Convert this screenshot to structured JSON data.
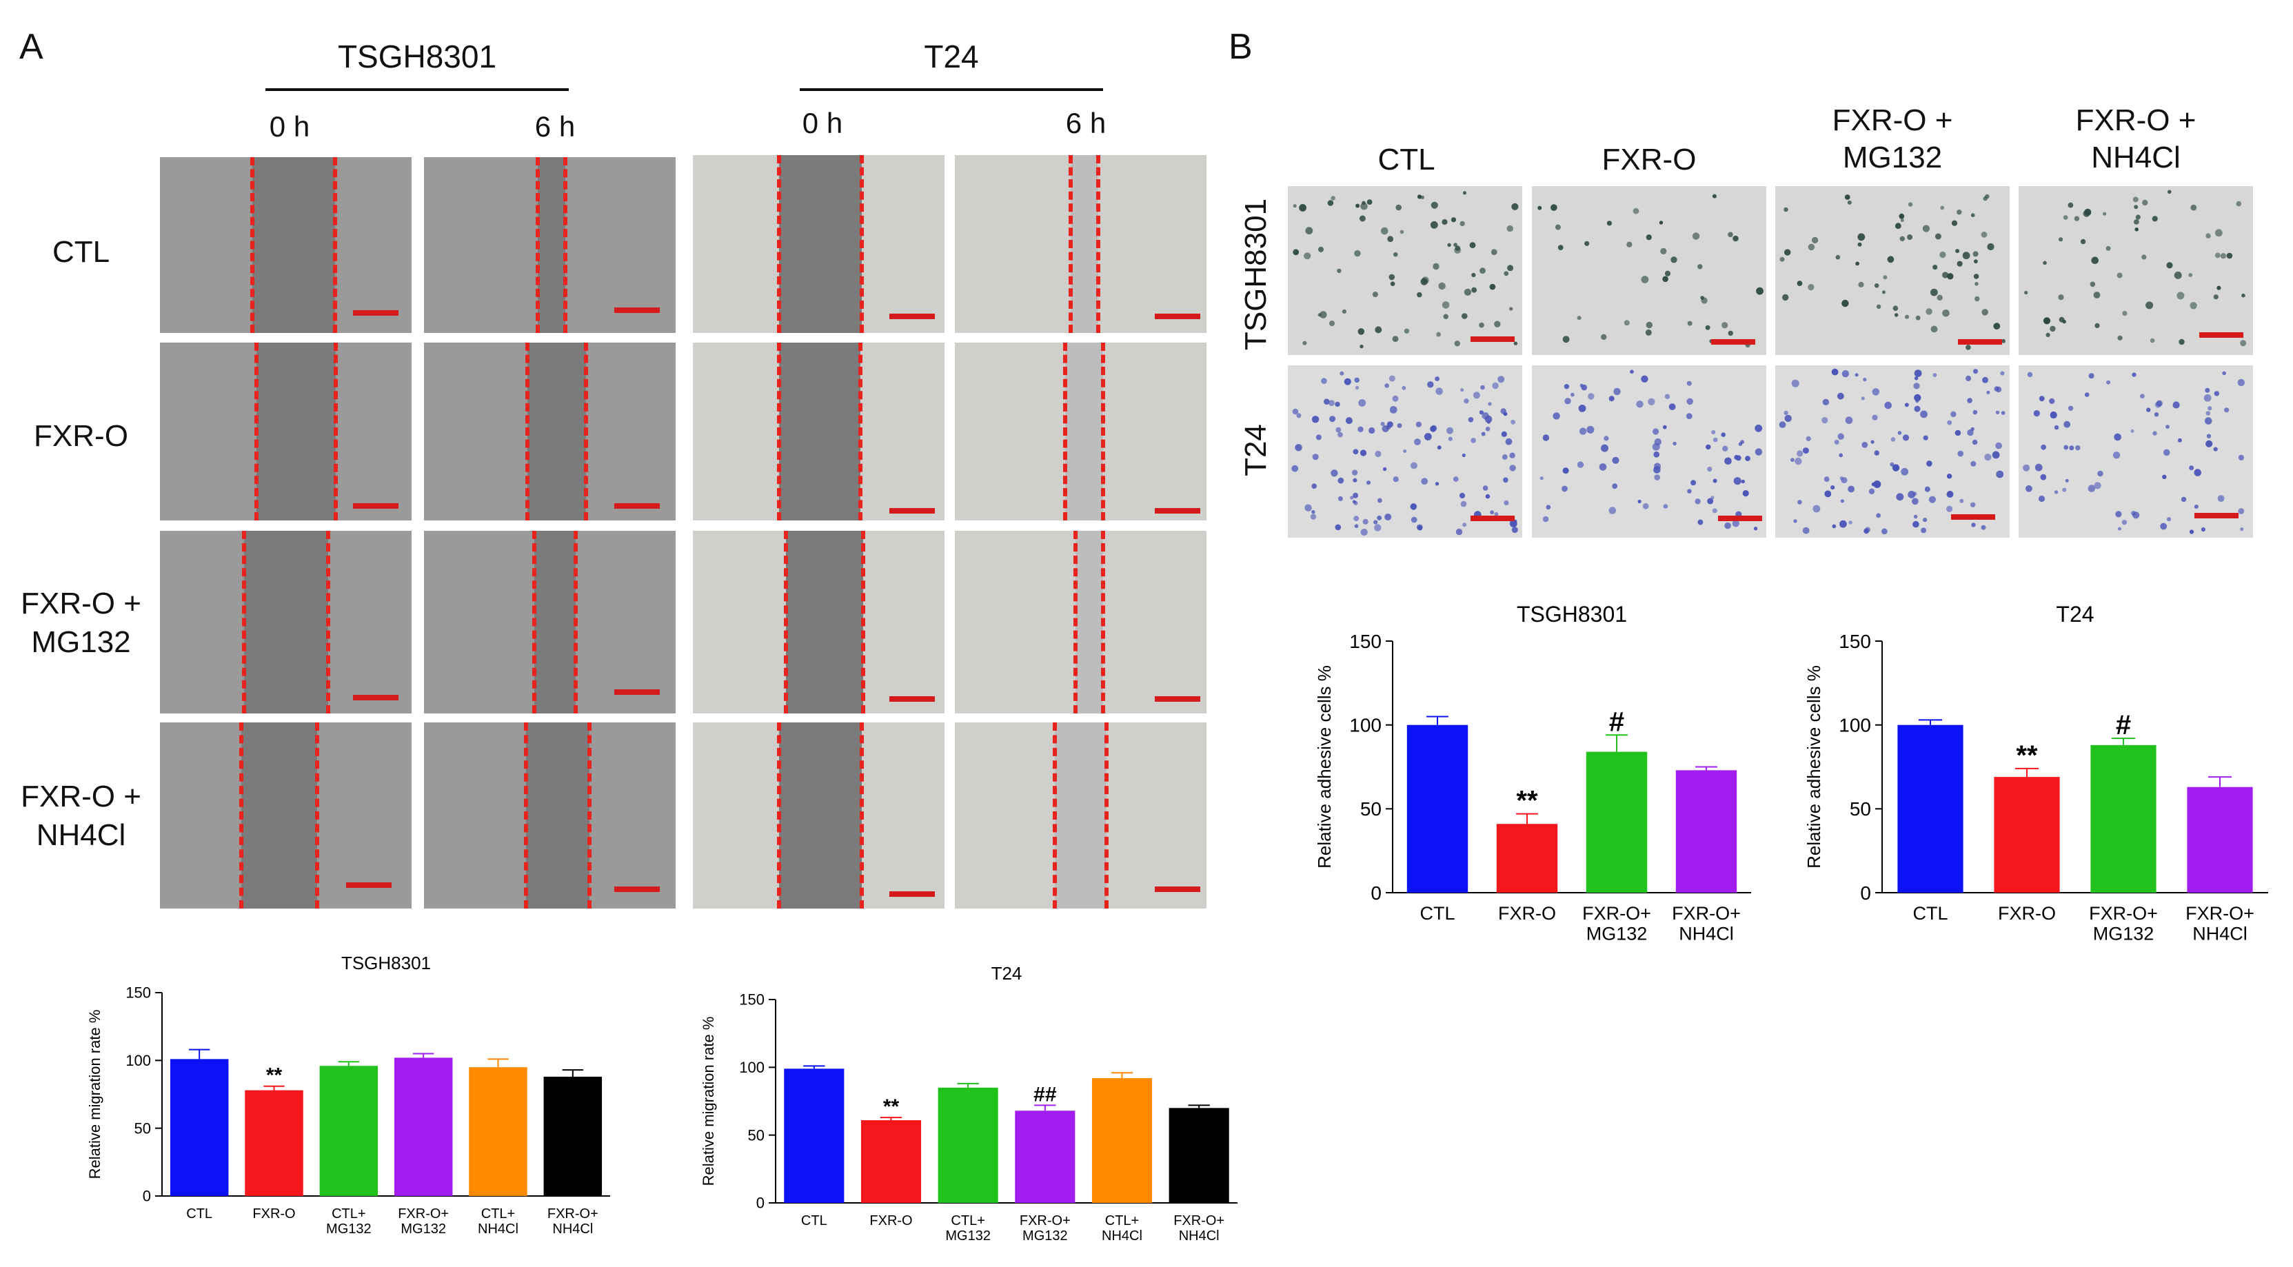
{
  "panel_a": {
    "letter": "A",
    "group_left": "TSGH8301",
    "group_right": "T24",
    "time_0": "0 h",
    "time_6": "6 h",
    "rows": [
      "CTL",
      "FXR-O",
      "FXR-O +\nMG132",
      "FXR-O +\nNH4Cl"
    ]
  },
  "panel_b": {
    "letter": "B",
    "cols": [
      "CTL",
      "FXR-O",
      "FXR-O +\nMG132",
      "FXR-O +\nNH4Cl"
    ],
    "row_top": "TSGH8301",
    "row_bottom": "T24"
  },
  "colors": {
    "blue": "#0b12f5",
    "red": "#f5171c",
    "green": "#22c21c",
    "purple": "#a21df0",
    "orange": "#ff8a00",
    "black": "#000000"
  },
  "chart_data": [
    {
      "type": "bar",
      "title": "TSGH8301",
      "ylabel": "Relative migration rate %",
      "ylim": [
        0,
        150
      ],
      "yticks": [
        "0",
        "50",
        "100",
        "150"
      ],
      "categories": [
        "CTL",
        "FXR-O",
        "CTL+\nMG132",
        "FXR-O+\nMG132",
        "CTL+\nNH4Cl",
        "FXR-O+\nNH4Cl"
      ],
      "values": [
        101,
        78,
        96,
        102,
        95,
        88
      ],
      "errors": [
        7,
        3,
        3,
        3,
        6,
        5
      ],
      "annotations": [
        "",
        "**",
        "",
        "",
        "",
        ""
      ],
      "bar_colors": [
        "blue",
        "red",
        "green",
        "purple",
        "orange",
        "black"
      ]
    },
    {
      "type": "bar",
      "title": "T24",
      "ylabel": "Relative migration rate %",
      "ylim": [
        0,
        150
      ],
      "yticks": [
        "0",
        "50",
        "100",
        "150"
      ],
      "categories": [
        "CTL",
        "FXR-O",
        "CTL+\nMG132",
        "FXR-O+\nMG132",
        "CTL+\nNH4Cl",
        "FXR-O+\nNH4Cl"
      ],
      "values": [
        99,
        61,
        85,
        68,
        92,
        70
      ],
      "errors": [
        2,
        2,
        3,
        4,
        4,
        2
      ],
      "annotations": [
        "",
        "**",
        "",
        "##",
        "",
        ""
      ],
      "bar_colors": [
        "blue",
        "red",
        "green",
        "purple",
        "orange",
        "black"
      ]
    },
    {
      "type": "bar",
      "title": "TSGH8301",
      "ylabel": "Relative adhesive cells %",
      "ylim": [
        0,
        150
      ],
      "yticks": [
        "0",
        "50",
        "100",
        "150"
      ],
      "categories": [
        "CTL",
        "FXR-O",
        "FXR-O+\nMG132",
        "FXR-O+\nNH4Cl"
      ],
      "values": [
        100,
        41,
        84,
        73
      ],
      "errors": [
        5,
        6,
        10,
        2
      ],
      "annotations": [
        "",
        "**",
        "#",
        ""
      ],
      "bar_colors": [
        "blue",
        "red",
        "green",
        "purple"
      ]
    },
    {
      "type": "bar",
      "title": "T24",
      "ylabel": "Relative adhesive cells %",
      "ylim": [
        0,
        150
      ],
      "yticks": [
        "0",
        "50",
        "100",
        "150"
      ],
      "categories": [
        "CTL",
        "FXR-O",
        "FXR-O+\nMG132",
        "FXR-O+\nNH4Cl"
      ],
      "values": [
        100,
        69,
        88,
        63
      ],
      "errors": [
        3,
        5,
        4,
        6
      ],
      "annotations": [
        "",
        "**",
        "#",
        ""
      ],
      "bar_colors": [
        "blue",
        "red",
        "green",
        "purple"
      ]
    }
  ]
}
